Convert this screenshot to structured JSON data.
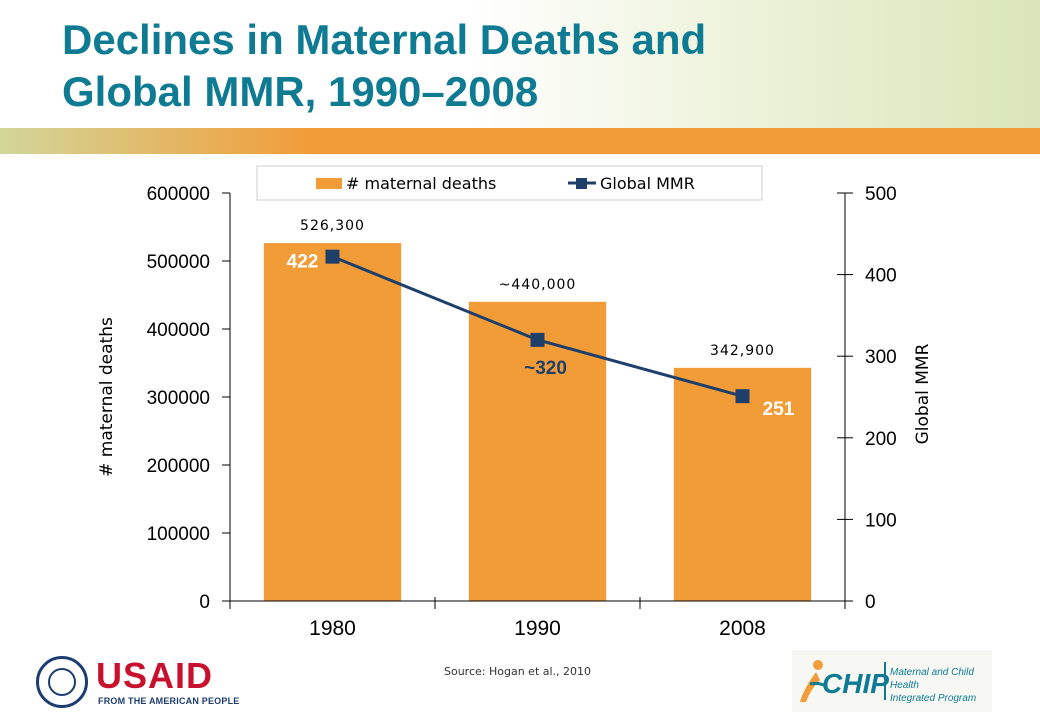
{
  "slide": {
    "title_line1": "Declines in Maternal Deaths and",
    "title_line2": "Global MMR, 1990–2008",
    "source": "Source: Hogan et al., 2010"
  },
  "logos": {
    "usaid_word": "USAID",
    "usaid_tagline": "FROM THE AMERICAN PEOPLE",
    "chip_word": "CHIP",
    "chip_desc_line1": "Maternal and Child Health",
    "chip_desc_line2": "Integrated Program"
  },
  "colors": {
    "title": "#0e7b93",
    "accent_bar": "#f29c38",
    "bar_fill": "#f29c38",
    "line": "#1f3f6b",
    "mmr_label": "#ffffff",
    "mmr_label_mid": "#1f3f6b"
  },
  "chart_data": {
    "type": "bar",
    "categories": [
      "1980",
      "1990",
      "2008"
    ],
    "series": [
      {
        "name": "# maternal deaths",
        "kind": "bar",
        "axis": "left",
        "values": [
          526300,
          440000,
          342900
        ],
        "labels": [
          "526,300",
          "~440,000",
          "342,900"
        ]
      },
      {
        "name": "Global MMR",
        "kind": "line",
        "axis": "right",
        "values": [
          422,
          320,
          251
        ],
        "labels": [
          "422",
          "~320",
          "251"
        ]
      }
    ],
    "ylabel": "# maternal deaths",
    "y2label": "Global MMR",
    "ylim": [
      0,
      600000
    ],
    "y2lim": [
      0,
      500
    ],
    "yticks": [
      "0",
      "100000",
      "200000",
      "300000",
      "400000",
      "500000",
      "600000"
    ],
    "y2ticks": [
      "0",
      "100",
      "200",
      "300",
      "400",
      "500"
    ],
    "legend_position": "top",
    "grid": false
  }
}
